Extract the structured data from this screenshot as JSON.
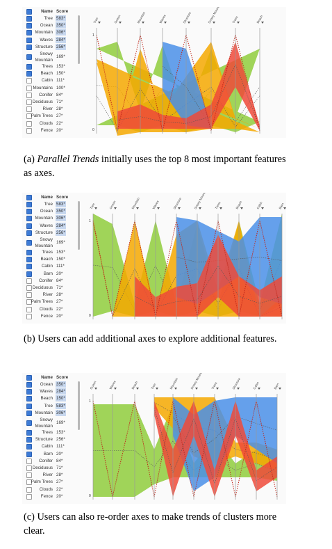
{
  "list_header": {
    "name": "Name",
    "score": "Score"
  },
  "panels": [
    {
      "caption_prefix": "(a) ",
      "caption_em": "Parallel Trends",
      "caption_rest": " initially uses the top 8 most important features as axes.",
      "features": [
        {
          "name": "Tree",
          "score": "583*",
          "checked": true,
          "hl": true
        },
        {
          "name": "Ocean",
          "score": "350*",
          "checked": true,
          "hl": true
        },
        {
          "name": "Mountain",
          "score": "306*",
          "checked": true,
          "hl": true
        },
        {
          "name": "Waves",
          "score": "284*",
          "checked": true,
          "hl": true
        },
        {
          "name": "Structure",
          "score": "256*",
          "checked": true,
          "hl": true
        },
        {
          "name": "Snowy Mountain",
          "score": "169*",
          "checked": true,
          "hl": false
        },
        {
          "name": "Trees",
          "score": "153*",
          "checked": true,
          "hl": false
        },
        {
          "name": "Beach",
          "score": "150*",
          "checked": true,
          "hl": false
        },
        {
          "name": "Cabin",
          "score": "111*",
          "checked": false,
          "hl": false
        },
        {
          "name": "Mountains",
          "score": "100*",
          "checked": false,
          "hl": false
        },
        {
          "name": "Conifer",
          "score": "84*",
          "checked": false,
          "hl": false
        },
        {
          "name": "Deciduous",
          "score": "71*",
          "checked": false,
          "hl": false
        },
        {
          "name": "River",
          "score": "28*",
          "checked": false,
          "hl": false
        },
        {
          "name": "Palm Trees",
          "score": "27*",
          "checked": false,
          "hl": false
        },
        {
          "name": "Clouds",
          "score": "22*",
          "checked": false,
          "hl": false
        },
        {
          "name": "Fence",
          "score": "20*",
          "checked": false,
          "hl": false
        }
      ],
      "axes": [
        "Tree",
        "Ocean",
        "Mountain",
        "Waves",
        "Structure",
        "Snowy Mountain",
        "Trees",
        "Beach"
      ]
    },
    {
      "caption_prefix": "(b) ",
      "caption_em": "",
      "caption_rest": "Users can add additional axes to explore additional features.",
      "features": [
        {
          "name": "Tree",
          "score": "583*",
          "checked": true,
          "hl": true
        },
        {
          "name": "Ocean",
          "score": "350*",
          "checked": true,
          "hl": true
        },
        {
          "name": "Mountain",
          "score": "306*",
          "checked": true,
          "hl": true
        },
        {
          "name": "Waves",
          "score": "284*",
          "checked": true,
          "hl": true
        },
        {
          "name": "Structure",
          "score": "256*",
          "checked": true,
          "hl": true
        },
        {
          "name": "Snowy Mountain",
          "score": "169*",
          "checked": true,
          "hl": false
        },
        {
          "name": "Trees",
          "score": "153*",
          "checked": true,
          "hl": false
        },
        {
          "name": "Beach",
          "score": "150*",
          "checked": true,
          "hl": false
        },
        {
          "name": "Cabin",
          "score": "111*",
          "checked": true,
          "hl": false
        },
        {
          "name": "Barn",
          "score": "20*",
          "checked": true,
          "hl": false
        },
        {
          "name": "Conifer",
          "score": "84*",
          "checked": false,
          "hl": false
        },
        {
          "name": "Deciduous",
          "score": "71*",
          "checked": false,
          "hl": false
        },
        {
          "name": "River",
          "score": "28*",
          "checked": false,
          "hl": false
        },
        {
          "name": "Palm Trees",
          "score": "27*",
          "checked": false,
          "hl": false
        },
        {
          "name": "Clouds",
          "score": "22*",
          "checked": false,
          "hl": false
        },
        {
          "name": "Fence",
          "score": "20*",
          "checked": false,
          "hl": false
        }
      ],
      "axes": [
        "Tree",
        "Ocean",
        "Mountain",
        "Waves",
        "Structure",
        "Snowy Mountain",
        "Trees",
        "Beach",
        "Cabin",
        "Barn"
      ]
    },
    {
      "caption_prefix": "(c) ",
      "caption_em": "",
      "caption_rest": "Users can also re-order axes to make trends of clusters more clear.",
      "features": [
        {
          "name": "Ocean",
          "score": "350*",
          "checked": true,
          "hl": true
        },
        {
          "name": "Waves",
          "score": "284*",
          "checked": true,
          "hl": true
        },
        {
          "name": "Beach",
          "score": "150*",
          "checked": true,
          "hl": true
        },
        {
          "name": "Tree",
          "score": "583*",
          "checked": true,
          "hl": true
        },
        {
          "name": "Mountain",
          "score": "306*",
          "checked": true,
          "hl": true
        },
        {
          "name": "Snowy Mountain",
          "score": "169*",
          "checked": true,
          "hl": false
        },
        {
          "name": "Trees",
          "score": "153*",
          "checked": true,
          "hl": false
        },
        {
          "name": "Structure",
          "score": "256*",
          "checked": true,
          "hl": false
        },
        {
          "name": "Cabin",
          "score": "111*",
          "checked": true,
          "hl": false
        },
        {
          "name": "Barn",
          "score": "20*",
          "checked": true,
          "hl": false
        },
        {
          "name": "Conifer",
          "score": "84*",
          "checked": false,
          "hl": false
        },
        {
          "name": "Deciduous",
          "score": "71*",
          "checked": false,
          "hl": false
        },
        {
          "name": "River",
          "score": "28*",
          "checked": false,
          "hl": false
        },
        {
          "name": "Palm Trees",
          "score": "27*",
          "checked": false,
          "hl": false
        },
        {
          "name": "Clouds",
          "score": "22*",
          "checked": false,
          "hl": false
        },
        {
          "name": "Fence",
          "score": "20*",
          "checked": false,
          "hl": false
        }
      ],
      "axes": [
        "Ocean",
        "Waves",
        "Beach",
        "Tree",
        "Mountain",
        "Snowy Mountain",
        "Trees",
        "Structure",
        "Cabin",
        "Barn"
      ]
    }
  ],
  "tick_labels": {
    "top": "1",
    "bottom": "0"
  },
  "colors": {
    "green": "#8fcc3c",
    "orange": "#f5a800",
    "blue": "#4a8fe8",
    "red": "#ee4a3a",
    "selected_score": "#c7d7ee",
    "checkbox": "#3d7bd6"
  }
}
